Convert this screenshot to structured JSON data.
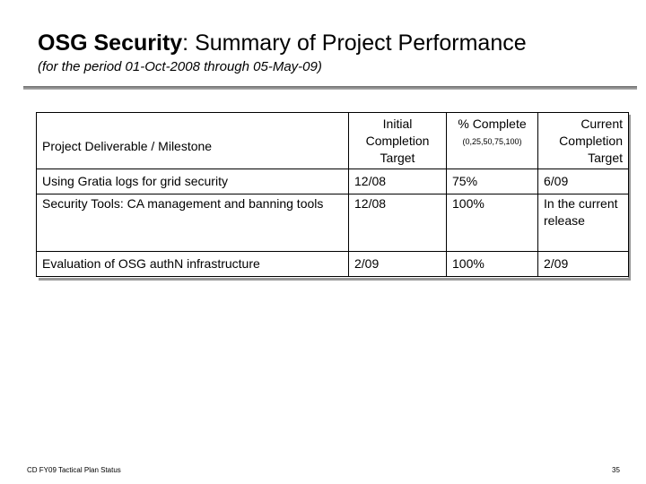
{
  "header": {
    "title_bold": "OSG Security",
    "title_rest": ": Summary of Project Performance",
    "subtitle": "(for the period 01-Oct-2008 through 05-May-09)"
  },
  "table": {
    "columns": {
      "deliverable": "Project Deliverable / Milestone",
      "initial": "Initial Completion Target",
      "percent": "% Complete",
      "percent_note": "(0,25,50,75,100)",
      "current": "Current Completion Target"
    },
    "rows": [
      {
        "deliverable": "Using Gratia logs for grid security",
        "initial": "12/08",
        "percent": "75%",
        "current": "6/09"
      },
      {
        "deliverable": "Security Tools: CA management and banning tools",
        "initial": "12/08",
        "percent": "100%",
        "current": "In the current release"
      },
      {
        "deliverable": "Evaluation of OSG authN infrastructure",
        "initial": "2/09",
        "percent": "100%",
        "current": "2/09"
      }
    ]
  },
  "footer": {
    "left": "CD FY09 Tactical Plan Status",
    "page_number": "35"
  }
}
